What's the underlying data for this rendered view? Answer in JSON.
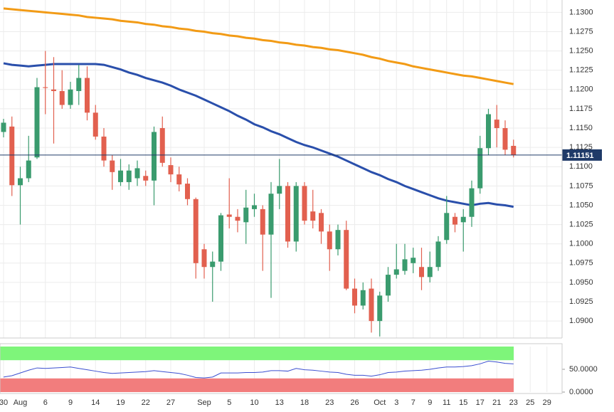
{
  "chart_data": [
    {
      "type": "candlestick",
      "categories": [
        "30",
        null,
        "Aug",
        null,
        null,
        "6",
        null,
        null,
        "9",
        null,
        null,
        "14",
        null,
        null,
        "19",
        null,
        null,
        "22",
        null,
        null,
        "27",
        null,
        null,
        null,
        "Sep",
        null,
        null,
        "5",
        null,
        null,
        "10",
        null,
        null,
        "13",
        null,
        null,
        "18",
        null,
        null,
        "23",
        null,
        null,
        "26",
        null,
        null,
        "Oct",
        null,
        "3",
        null,
        "7",
        null,
        "9",
        null,
        "11",
        null,
        "15",
        null,
        "17",
        null,
        "21",
        null,
        "23",
        null,
        "25",
        null,
        "29"
      ],
      "open": [
        1.1145,
        1.1152,
        1.1076,
        1.1085,
        1.1112,
        1.1203,
        1.12,
        1.1198,
        1.118,
        1.1198,
        1.1215,
        1.117,
        1.1139,
        1.1108,
        1.108,
        1.108,
        1.1085,
        1.1088,
        1.1082,
        1.115,
        1.1102,
        1.109,
        1.1078,
        1.1058,
        1.0993,
        1.097,
        1.0977,
        1.1038,
        1.1035,
        1.1028,
        1.1045,
        1.1045,
        1.1012,
        1.1065,
        1.1075,
        1.1003,
        1.1075,
        1.1042,
        1.104,
        1.1016,
        1.0993,
        1.1018,
        1.0942,
        1.092,
        1.0942,
        1.09,
        1.0933,
        1.096,
        1.0965,
        1.0975,
        1.097,
        1.0957,
        1.097,
        1.1005,
        1.1035,
        1.1028,
        1.1035,
        1.1072,
        1.1124,
        1.1161,
        1.115,
        1.1127,
        null,
        null,
        null,
        null
      ],
      "high": [
        1.1162,
        1.1165,
        1.11,
        1.114,
        1.1215,
        1.125,
        1.1242,
        1.1225,
        1.121,
        1.1232,
        1.123,
        1.118,
        1.115,
        1.1115,
        1.111,
        1.1103,
        1.1108,
        1.1095,
        1.1152,
        1.1165,
        1.1112,
        1.11,
        1.1085,
        1.106,
        1.1,
        1.099,
        1.104,
        1.1085,
        1.1045,
        1.107,
        1.1065,
        1.105,
        1.108,
        1.111,
        1.108,
        1.108,
        1.108,
        1.107,
        1.1045,
        1.1025,
        1.1025,
        1.103,
        1.0955,
        1.095,
        1.0955,
        1.0938,
        1.097,
        1.1,
        1.1,
        1.0995,
        1.0995,
        1.099,
        1.101,
        1.1062,
        1.104,
        1.1045,
        1.1082,
        1.114,
        1.1175,
        1.118,
        1.116,
        1.1135,
        null,
        null,
        null,
        null
      ],
      "low": [
        1.1138,
        1.1062,
        1.1025,
        1.108,
        1.111,
        1.1168,
        1.113,
        1.1175,
        1.1175,
        1.118,
        1.116,
        1.1135,
        1.11,
        1.107,
        1.1075,
        1.107,
        1.1075,
        1.1075,
        1.105,
        1.11,
        1.108,
        1.1068,
        1.105,
        1.0955,
        1.0955,
        1.0925,
        1.0965,
        1.102,
        1.1015,
        1.1,
        1.1035,
        1.0965,
        1.093,
        1.1045,
        1.0995,
        1.099,
        1.1025,
        1.102,
        1.1,
        1.0965,
        1.0985,
        1.094,
        1.091,
        1.0915,
        1.0885,
        1.088,
        1.0925,
        1.0955,
        1.096,
        1.0962,
        1.094,
        1.095,
        1.0965,
        1.1,
        1.1015,
        1.099,
        1.1022,
        1.1065,
        1.1115,
        1.1125,
        1.1115,
        1.1112,
        null,
        null,
        null,
        null
      ],
      "close": [
        1.1157,
        1.1076,
        1.1085,
        1.1108,
        1.1203,
        1.1202,
        1.1198,
        1.118,
        1.12,
        1.1215,
        1.117,
        1.1139,
        1.1108,
        1.1093,
        1.1095,
        1.1095,
        1.1098,
        1.1082,
        1.1145,
        1.1105,
        1.109,
        1.1077,
        1.1058,
        1.0975,
        1.097,
        1.0977,
        1.1037,
        1.1035,
        1.103,
        1.1047,
        1.105,
        1.1012,
        1.1065,
        1.1075,
        1.1003,
        1.1075,
        1.103,
        1.103,
        1.1016,
        1.0993,
        1.1018,
        1.0942,
        1.092,
        1.094,
        1.09,
        1.0933,
        1.096,
        1.0967,
        1.098,
        1.0982,
        1.0957,
        1.097,
        1.1003,
        1.104,
        1.1025,
        1.1035,
        1.1072,
        1.1124,
        1.1168,
        1.115,
        1.1122,
        1.1115,
        null,
        null,
        null,
        null
      ],
      "up_color": "#3a9b6e",
      "down_color": "#e2604f",
      "series": [
        {
          "color": "#f29b16",
          "values": [
            1.1305,
            1.1304,
            1.1303,
            1.1302,
            1.1301,
            1.13,
            1.1299,
            1.1298,
            1.1297,
            1.1296,
            1.1294,
            1.1293,
            1.1292,
            1.1291,
            1.1289,
            1.1288,
            1.1287,
            1.1285,
            1.1284,
            1.1282,
            1.1281,
            1.1279,
            1.1278,
            1.1276,
            1.1275,
            1.1273,
            1.1272,
            1.127,
            1.1269,
            1.1267,
            1.1266,
            1.1264,
            1.1263,
            1.1261,
            1.126,
            1.1258,
            1.1257,
            1.1255,
            1.1254,
            1.1252,
            1.1251,
            1.1249,
            1.1247,
            1.1245,
            1.1242,
            1.124,
            1.1237,
            1.1235,
            1.1233,
            1.123,
            1.1228,
            1.1226,
            1.1224,
            1.1222,
            1.122,
            1.1218,
            1.1217,
            1.1215,
            1.1213,
            1.1211,
            1.1209,
            1.1207,
            null,
            null,
            null,
            null
          ]
        },
        {
          "color": "#2a4fab",
          "values": [
            1.1234,
            1.1232,
            1.1231,
            1.123,
            1.1231,
            1.1232,
            1.1233,
            1.1233,
            1.1233,
            1.1233,
            1.1233,
            1.1233,
            1.1232,
            1.1229,
            1.1226,
            1.1222,
            1.1219,
            1.1215,
            1.1212,
            1.1209,
            1.1205,
            1.12,
            1.1196,
            1.1192,
            1.1187,
            1.1182,
            1.1177,
            1.1172,
            1.1166,
            1.1161,
            1.1155,
            1.1151,
            1.1146,
            1.1142,
            1.1137,
            1.1132,
            1.1128,
            1.1125,
            1.1121,
            1.1117,
            1.1113,
            1.1108,
            1.1103,
            1.1098,
            1.1093,
            1.1089,
            1.1084,
            1.108,
            1.1075,
            1.1071,
            1.1067,
            1.1063,
            1.1059,
            1.1056,
            1.1054,
            1.1052,
            1.105,
            1.1052,
            1.1053,
            1.1051,
            1.105,
            1.1048,
            null,
            null,
            null,
            null
          ]
        }
      ],
      "last_price": 1.11151,
      "ylim": [
        1.0878,
        1.1316
      ],
      "yticks": [
        {
          "value": 1.09,
          "label": "1.0900"
        },
        {
          "value": 1.0925,
          "label": "1.0925"
        },
        {
          "value": 1.095,
          "label": "1.0950"
        },
        {
          "value": 1.0975,
          "label": "1.0975"
        },
        {
          "value": 1.1,
          "label": "1.1000"
        },
        {
          "value": 1.1025,
          "label": "1.1025"
        },
        {
          "value": 1.105,
          "label": "1.1050"
        },
        {
          "value": 1.1075,
          "label": "1.1075"
        },
        {
          "value": 1.11,
          "label": "1.1100"
        },
        {
          "value": 1.1125,
          "label": "1.1125"
        },
        {
          "value": 1.115,
          "label": "1.1150"
        },
        {
          "value": 1.1175,
          "label": "1.1175"
        },
        {
          "value": 1.12,
          "label": "1.1200"
        },
        {
          "value": 1.1225,
          "label": "1.1225"
        },
        {
          "value": 1.125,
          "label": "1.1250"
        },
        {
          "value": 1.1275,
          "label": "1.1275"
        },
        {
          "value": 1.13,
          "label": "1.1300"
        }
      ],
      "grid": true
    },
    {
      "type": "line",
      "color": "#3b4fd0",
      "values": [
        33,
        36,
        42,
        48,
        53,
        52,
        53,
        54,
        55,
        52,
        49,
        46,
        43,
        41,
        42,
        43,
        44,
        45,
        47,
        45,
        43,
        41,
        37,
        32,
        31,
        33,
        42,
        42,
        42,
        43,
        43,
        44,
        47,
        47,
        46,
        52,
        49,
        48,
        46,
        44,
        43,
        39,
        37,
        37,
        35,
        38,
        43,
        44,
        46,
        47,
        48,
        50,
        53,
        55,
        55,
        56,
        58,
        62,
        68,
        66,
        63,
        62,
        null,
        null,
        null,
        null
      ],
      "zones": [
        {
          "from": 70,
          "to": 100,
          "color": "#7ef57a"
        },
        {
          "from": 0,
          "to": 30,
          "color": "#f27d7d"
        }
      ],
      "ylim": [
        0,
        100
      ],
      "yticks": [
        {
          "value": 0,
          "label": "0.0000"
        },
        {
          "value": 50,
          "label": "50.0000"
        }
      ]
    }
  ]
}
